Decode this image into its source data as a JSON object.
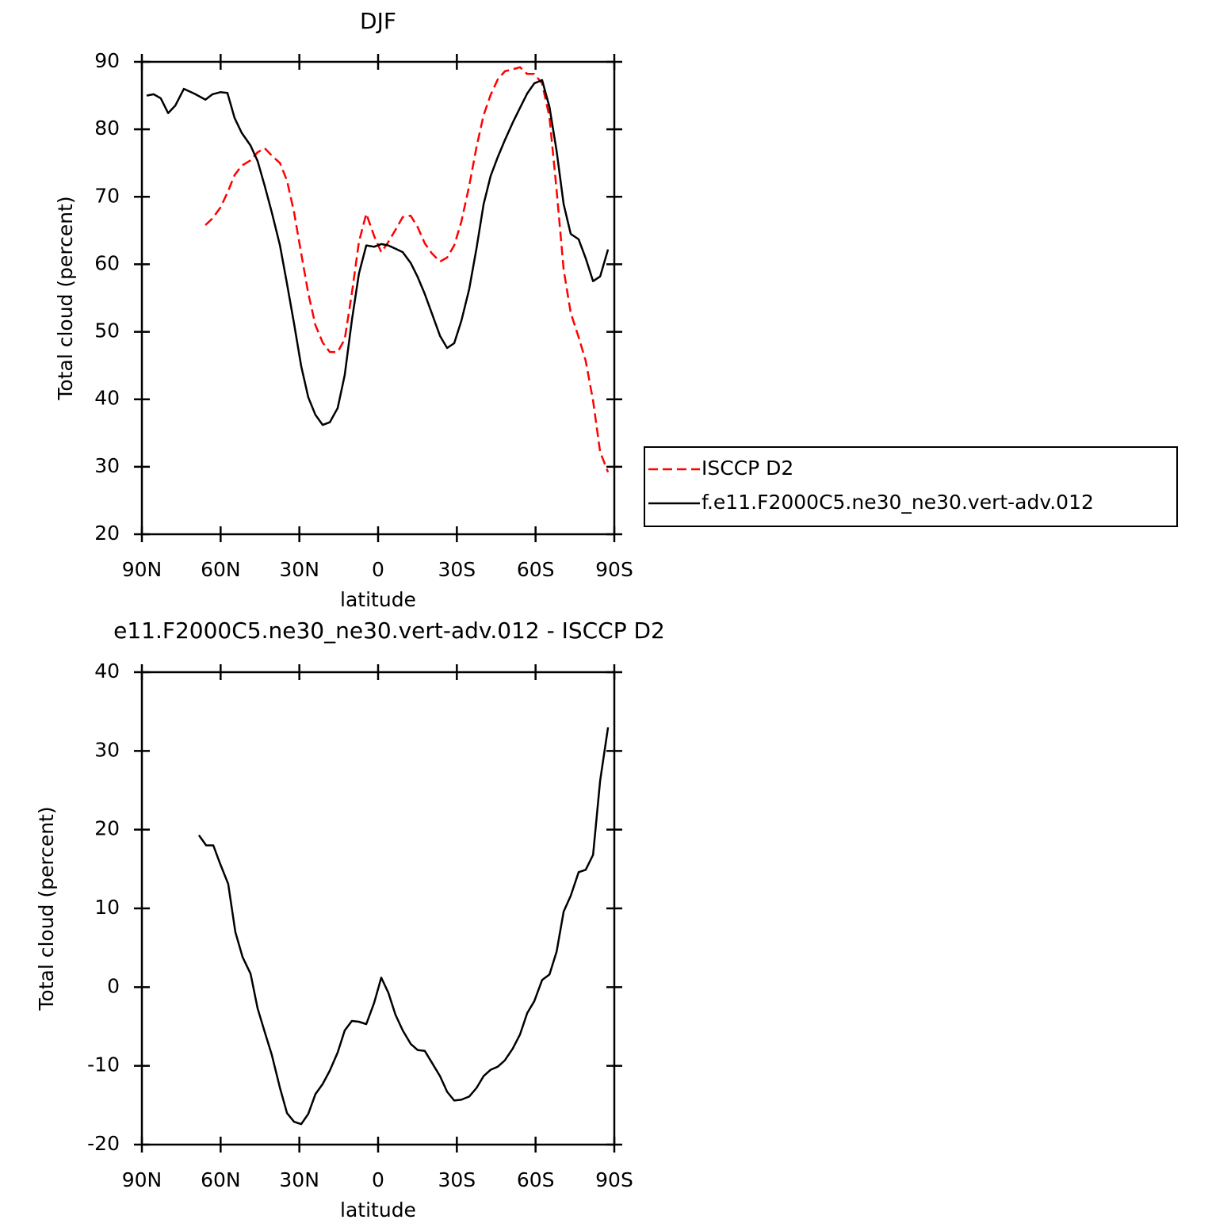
{
  "chart_data": [
    {
      "type": "line",
      "title": "DJF",
      "x_label": "latitude",
      "y_label": "Total cloud (percent)",
      "xlim": [
        90,
        -90
      ],
      "xticks": [
        {
          "value": 90,
          "label": "90N"
        },
        {
          "value": 60,
          "label": "60N"
        },
        {
          "value": 30,
          "label": "30N"
        },
        0,
        {
          "value": -30,
          "label": "30S"
        },
        {
          "value": -60,
          "label": "60S"
        },
        {
          "value": -90,
          "label": "90S"
        }
      ],
      "ylim": [
        20,
        90
      ],
      "yticks": [
        20,
        30,
        40,
        50,
        60,
        70,
        80,
        90
      ],
      "legend_position": "right",
      "x": [
        88.2,
        85.5,
        82.8,
        80.0,
        77.3,
        74.0,
        70.1,
        65.8,
        63.1,
        60.1,
        57.4,
        54.7,
        52.0,
        48.6,
        45.9,
        43.2,
        40.5,
        37.4,
        34.7,
        32.0,
        29.3,
        26.6,
        23.9,
        21.1,
        18.4,
        15.4,
        12.7,
        10.0,
        7.3,
        4.5,
        1.5,
        -1.2,
        -3.9,
        -6.6,
        -9.4,
        -12.4,
        -15.1,
        -17.8,
        -20.5,
        -23.6,
        -26.3,
        -29.0,
        -31.7,
        -34.7,
        -37.5,
        -40.2,
        -42.9,
        -45.6,
        -48.3,
        -51.3,
        -54.1,
        -56.8,
        -59.5,
        -62.5,
        -65.3,
        -68.0,
        -70.7,
        -73.4,
        -76.4,
        -79.1,
        -81.9,
        -84.6,
        -87.6
      ],
      "series": [
        {
          "name": "ISCCP D2",
          "color": "#ff0000",
          "dashed": true,
          "values": [
            null,
            null,
            null,
            null,
            null,
            null,
            null,
            65.8,
            66.8,
            68.4,
            70.6,
            73.2,
            74.6,
            75.4,
            76.6,
            77.2,
            76.1,
            75.0,
            72.4,
            67.7,
            61.6,
            55.7,
            51.0,
            48.4,
            47.0,
            47.0,
            48.9,
            55.7,
            63.3,
            67.5,
            64.2,
            61.8,
            63.3,
            65.1,
            67.0,
            67.2,
            65.5,
            63.1,
            61.6,
            60.4,
            61.0,
            62.8,
            66.3,
            71.6,
            77.4,
            82.1,
            85.1,
            87.4,
            88.6,
            88.9,
            89.2,
            88.2,
            88.2,
            86.8,
            81.8,
            71.0,
            59.2,
            52.8,
            49.2,
            45.7,
            39.8,
            32.2,
            29.2
          ]
        },
        {
          "name": "f.e11.F2000C5.ne30_ne30.vert-adv.012",
          "color": "#000000",
          "dashed": false,
          "values": [
            85.0,
            85.2,
            84.6,
            82.4,
            83.5,
            86.0,
            85.3,
            84.4,
            85.2,
            85.5,
            85.4,
            81.7,
            79.5,
            77.6,
            75.3,
            71.6,
            67.7,
            62.8,
            57.1,
            51.2,
            44.9,
            40.3,
            37.7,
            36.2,
            36.6,
            38.7,
            43.6,
            51.7,
            58.6,
            62.8,
            62.6,
            63.0,
            62.8,
            62.3,
            61.8,
            60.2,
            58.1,
            55.6,
            52.7,
            49.4,
            47.6,
            48.3,
            51.6,
            56.3,
            62.4,
            68.9,
            73.1,
            75.9,
            78.4,
            81.0,
            83.2,
            85.3,
            86.8,
            87.3,
            83.3,
            76.8,
            68.9,
            64.5,
            63.7,
            60.9,
            57.5,
            58.2,
            62.2
          ]
        }
      ]
    },
    {
      "type": "line",
      "title": "e11.F2000C5.ne30_ne30.vert-adv.012 - ISCCP D2",
      "x_label": "latitude",
      "y_label": "Total cloud (percent)",
      "xlim": [
        90,
        -90
      ],
      "xticks": [
        {
          "value": 90,
          "label": "90N"
        },
        {
          "value": 60,
          "label": "60N"
        },
        {
          "value": 30,
          "label": "30N"
        },
        0,
        {
          "value": -30,
          "label": "30S"
        },
        {
          "value": -60,
          "label": "60S"
        },
        {
          "value": -90,
          "label": "90S"
        }
      ],
      "ylim": [
        -20,
        40
      ],
      "yticks": [
        -20,
        -10,
        0,
        10,
        20,
        30,
        40
      ],
      "color": "#000000",
      "x": [
        68.3,
        65.5,
        62.8,
        60.1,
        57.1,
        54.4,
        51.6,
        48.6,
        45.9,
        43.2,
        40.5,
        37.4,
        34.7,
        32.0,
        29.3,
        26.6,
        23.9,
        21.1,
        18.4,
        15.4,
        12.7,
        10.0,
        7.3,
        4.5,
        1.5,
        -1.2,
        -3.9,
        -6.6,
        -9.4,
        -12.4,
        -15.1,
        -17.8,
        -20.5,
        -23.6,
        -26.3,
        -29.0,
        -31.7,
        -34.7,
        -37.5,
        -40.2,
        -42.9,
        -45.6,
        -48.3,
        -51.3,
        -54.1,
        -56.8,
        -59.5,
        -62.5,
        -65.3,
        -68.0,
        -70.7,
        -73.4,
        -76.4,
        -79.1,
        -81.9,
        -84.6,
        -87.6
      ],
      "values": [
        19.3,
        18.0,
        18.0,
        15.6,
        13.1,
        7.0,
        3.8,
        1.7,
        -2.7,
        -5.7,
        -8.6,
        -12.8,
        -16.0,
        -17.1,
        -17.4,
        -16.1,
        -13.6,
        -12.3,
        -10.6,
        -8.3,
        -5.5,
        -4.3,
        -4.4,
        -4.7,
        -2.0,
        1.2,
        -0.7,
        -3.5,
        -5.5,
        -7.2,
        -8.0,
        -8.1,
        -9.6,
        -11.3,
        -13.3,
        -14.4,
        -14.3,
        -13.9,
        -12.8,
        -11.3,
        -10.5,
        -10.1,
        -9.3,
        -7.8,
        -6.0,
        -3.3,
        -1.8,
        0.9,
        1.6,
        4.5,
        9.6,
        11.6,
        14.6,
        14.9,
        16.8,
        26.2,
        33.0
      ]
    }
  ]
}
